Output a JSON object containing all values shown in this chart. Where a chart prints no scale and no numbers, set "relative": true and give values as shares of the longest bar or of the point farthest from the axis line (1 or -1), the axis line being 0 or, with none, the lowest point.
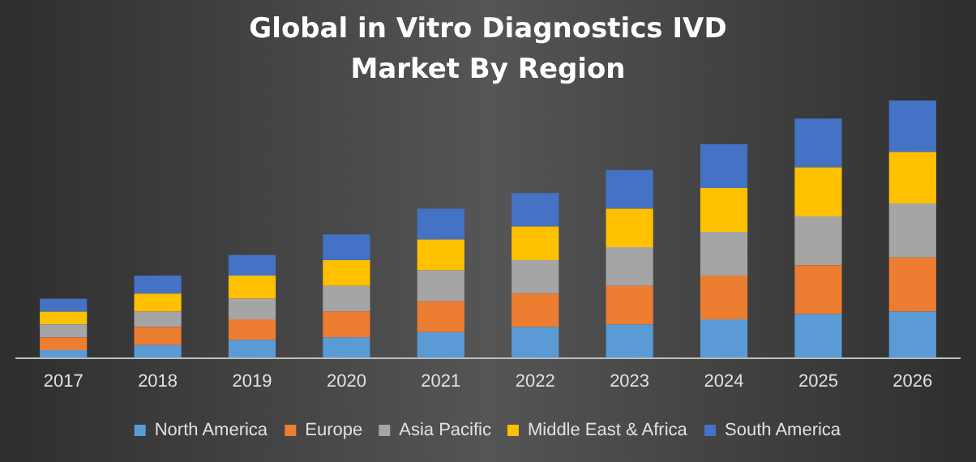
{
  "chart_data": {
    "type": "bar",
    "title": "Global in Vitro Diagnostics IVD Market By Region",
    "relative": true,
    "stacked": true,
    "legend": "bottom",
    "grid": false,
    "categories": [
      "2017",
      "2018",
      "2019",
      "2020",
      "2021",
      "2022",
      "2023",
      "2024",
      "2025",
      "2026"
    ],
    "series": [
      {
        "name": "North America",
        "color": "#5b9bd5",
        "values": [
          0.03,
          0.05,
          0.07,
          0.08,
          0.1,
          0.12,
          0.13,
          0.15,
          0.17,
          0.18
        ]
      },
      {
        "name": "Europe",
        "color": "#ed7d31",
        "values": [
          0.05,
          0.07,
          0.08,
          0.1,
          0.12,
          0.13,
          0.15,
          0.17,
          0.19,
          0.21
        ]
      },
      {
        "name": "Asia Pacific",
        "color": "#a5a5a5",
        "values": [
          0.05,
          0.06,
          0.08,
          0.1,
          0.12,
          0.13,
          0.15,
          0.17,
          0.19,
          0.21
        ]
      },
      {
        "name": "Middle East & Africa",
        "color": "#ffc000",
        "values": [
          0.05,
          0.07,
          0.09,
          0.1,
          0.12,
          0.13,
          0.15,
          0.17,
          0.19,
          0.2
        ]
      },
      {
        "name": "South America",
        "color": "#4472c4",
        "values": [
          0.05,
          0.07,
          0.08,
          0.1,
          0.12,
          0.13,
          0.15,
          0.17,
          0.19,
          0.2
        ]
      }
    ]
  }
}
